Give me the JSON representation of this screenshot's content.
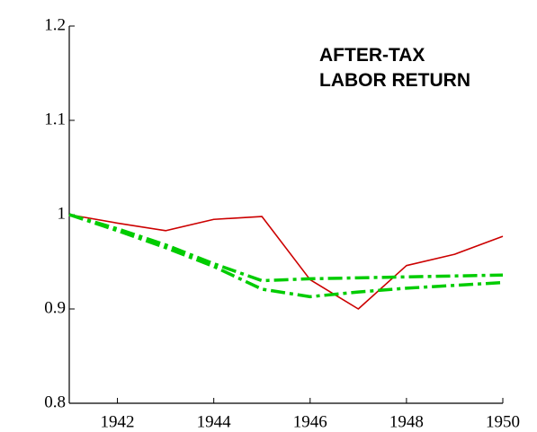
{
  "chart_data": {
    "type": "line",
    "title": [
      "AFTER-TAX",
      "LABOR RETURN"
    ],
    "x": [
      1941,
      1942,
      1943,
      1944,
      1945,
      1946,
      1947,
      1948,
      1949,
      1950
    ],
    "series": [
      {
        "color": "#cc0000",
        "style": "solid",
        "values": [
          1.0,
          0.991,
          0.983,
          0.995,
          0.998,
          0.931,
          0.9,
          0.946,
          0.958,
          0.977
        ]
      },
      {
        "color": "#00cc00",
        "style": "dashdot",
        "values": [
          1.0,
          0.985,
          0.968,
          0.948,
          0.93,
          0.932,
          0.933,
          0.934,
          0.935,
          0.936
        ]
      },
      {
        "color": "#00cc00",
        "style": "dashdot",
        "values": [
          1.0,
          0.983,
          0.965,
          0.945,
          0.921,
          0.913,
          0.918,
          0.922,
          0.925,
          0.928
        ]
      }
    ],
    "xlim": [
      1941,
      1950
    ],
    "xticks": [
      1942,
      1944,
      1946,
      1948,
      1950
    ],
    "ylim": [
      0.8,
      1.2
    ],
    "yticks": [
      0.8,
      0.9,
      1,
      1.1,
      1.2
    ]
  }
}
